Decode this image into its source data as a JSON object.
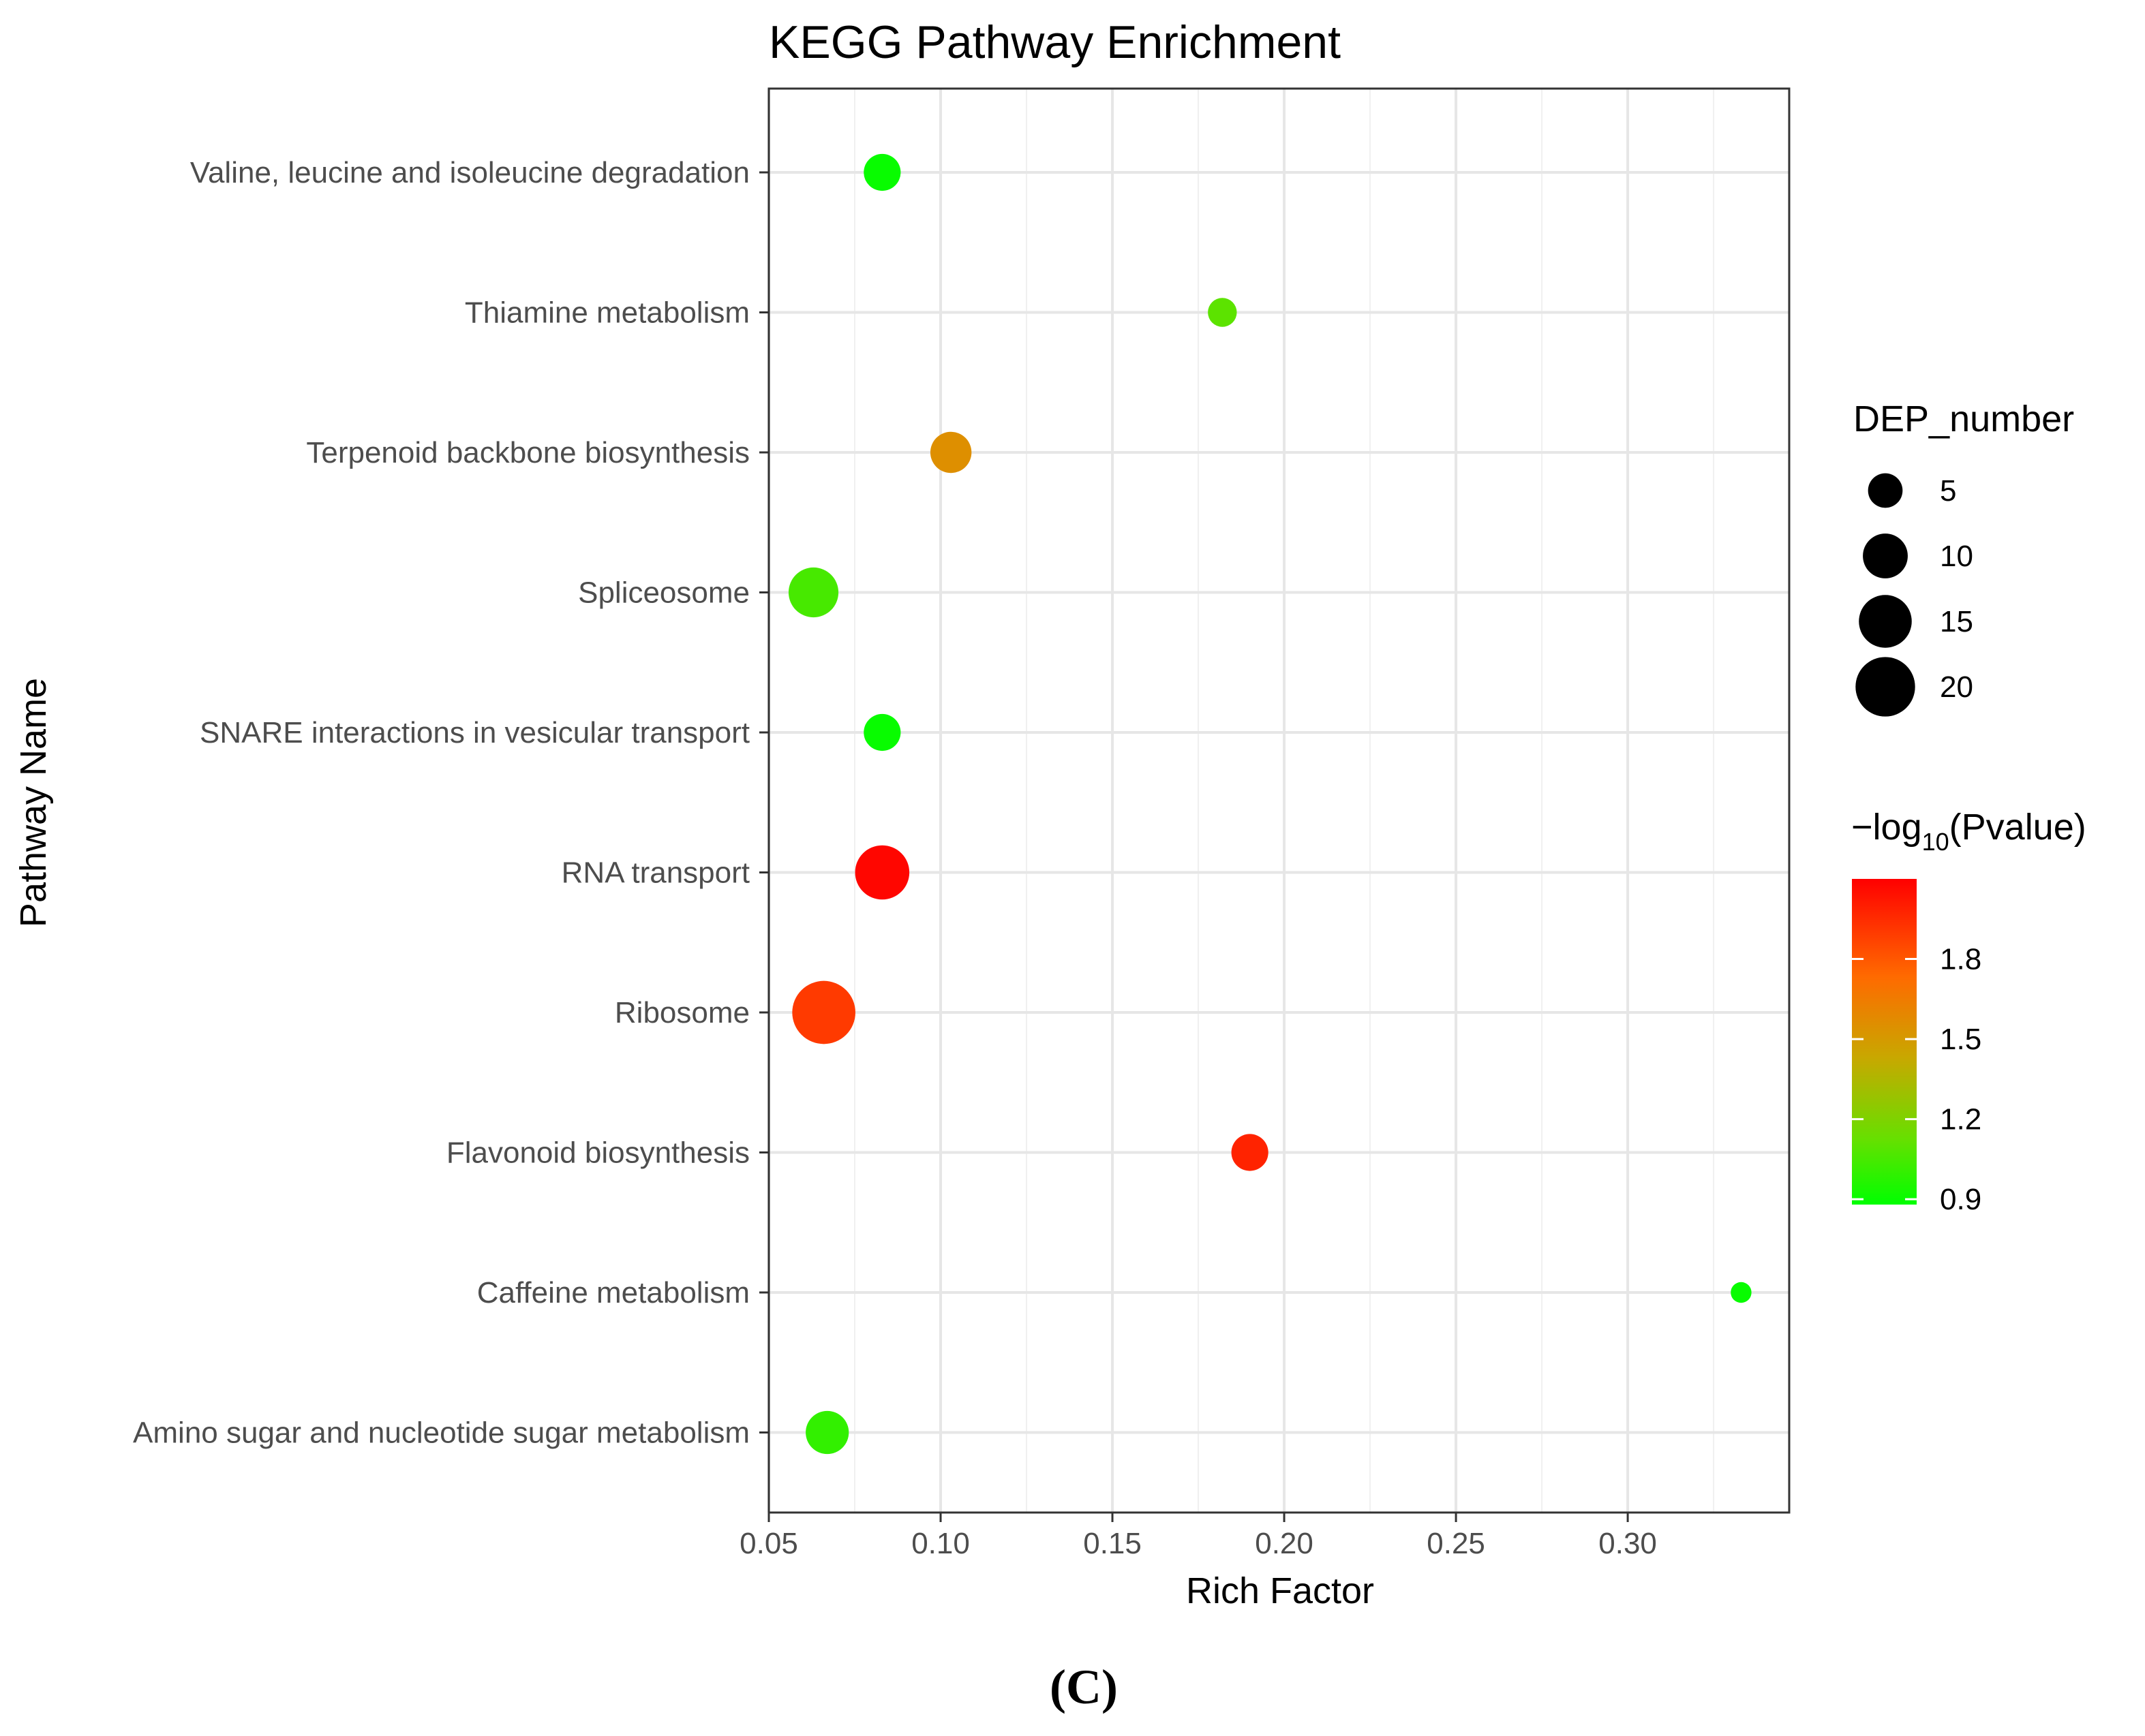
{
  "chart_data": {
    "type": "scatter",
    "title": "KEGG Pathway Enrichment",
    "xlabel": "Rich Factor",
    "ylabel": "Pathway Name",
    "xlim": [
      0.05,
      0.347
    ],
    "x_ticks": [
      0.05,
      0.1,
      0.15,
      0.2,
      0.25,
      0.3
    ],
    "x_tick_labels": [
      "0.05",
      "0.10",
      "0.15",
      "0.20",
      "0.25",
      "0.30"
    ],
    "grid": true,
    "categories": [
      "Valine, leucine and isoleucine degradation",
      "Thiamine metabolism",
      "Terpenoid backbone biosynthesis",
      "Spliceosome",
      "SNARE interactions in vesicular transport",
      "RNA transport",
      "Ribosome",
      "Flavonoid biosynthesis",
      "Caffeine metabolism",
      "Amino sugar and nucleotide sugar metabolism"
    ],
    "points": [
      {
        "pathway": "Valine, leucine and isoleucine degradation",
        "rich_factor": 0.083,
        "dep_number": 6,
        "neg_log10_pvalue": 0.9
      },
      {
        "pathway": "Thiamine metabolism",
        "rich_factor": 0.182,
        "dep_number": 3,
        "neg_log10_pvalue": 1.1
      },
      {
        "pathway": "Terpenoid backbone biosynthesis",
        "rich_factor": 0.103,
        "dep_number": 8,
        "neg_log10_pvalue": 1.55
      },
      {
        "pathway": "Spliceosome",
        "rich_factor": 0.063,
        "dep_number": 13,
        "neg_log10_pvalue": 1.05
      },
      {
        "pathway": "SNARE interactions in vesicular transport",
        "rich_factor": 0.083,
        "dep_number": 6,
        "neg_log10_pvalue": 0.9
      },
      {
        "pathway": "RNA transport",
        "rich_factor": 0.083,
        "dep_number": 16,
        "neg_log10_pvalue": 2.08
      },
      {
        "pathway": "Ribosome",
        "rich_factor": 0.066,
        "dep_number": 23,
        "neg_log10_pvalue": 1.9
      },
      {
        "pathway": "Flavonoid biosynthesis",
        "rich_factor": 0.19,
        "dep_number": 6,
        "neg_log10_pvalue": 1.98
      },
      {
        "pathway": "Caffeine metabolism",
        "rich_factor": 0.333,
        "dep_number": 1,
        "neg_log10_pvalue": 0.9
      },
      {
        "pathway": "Amino sugar and nucleotide sugar metabolism",
        "rich_factor": 0.067,
        "dep_number": 9,
        "neg_log10_pvalue": 1.0
      }
    ],
    "size_legend": {
      "title": "DEP_number",
      "values": [
        5,
        10,
        15,
        20
      ],
      "labels": [
        "5",
        "10",
        "15",
        "20"
      ]
    },
    "color_legend": {
      "title_prefix": "−log",
      "title_subscript": "10",
      "title_suffix": "(Pvalue)",
      "range": [
        0.88,
        2.1
      ],
      "ticks": [
        0.9,
        1.2,
        1.5,
        1.8
      ],
      "tick_labels": [
        "0.9",
        "1.2",
        "1.5",
        "1.8"
      ],
      "low_color": "#00ff00",
      "high_color": "#ff0000",
      "placement": "right"
    },
    "panel_label": "(C)"
  }
}
